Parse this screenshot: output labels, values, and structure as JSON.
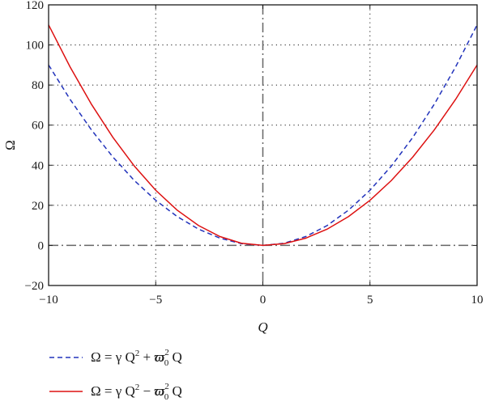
{
  "chart_data": {
    "type": "line",
    "title": "",
    "xlabel": "Q",
    "ylabel": "Ω",
    "xlim": [
      -10,
      10
    ],
    "ylim": [
      -20,
      120
    ],
    "xticks": [
      -10,
      -5,
      0,
      5,
      10
    ],
    "yticks": [
      -20,
      0,
      20,
      40,
      60,
      80,
      100,
      120
    ],
    "xtick_labels": [
      "−10",
      "−5",
      "0",
      "5",
      "10"
    ],
    "ytick_labels": [
      "−20",
      "0",
      "20",
      "40",
      "60",
      "80",
      "100",
      "120"
    ],
    "grid": "dotted",
    "reference_lines": {
      "x": 0,
      "y": 0,
      "style": "dash-dot"
    },
    "legend_position": "below",
    "series": [
      {
        "name": "Ω = γ Q² + ϖ₀² Q",
        "legend_text": "Ω = γ Q",
        "legend_exp": "2",
        "legend_op": "+",
        "legend_sym": "ϖ",
        "legend_sub": "0",
        "legend_sup": "2",
        "legend_tail": "Q",
        "color": "#2233bb",
        "style": "dashed",
        "x": [
          -10,
          -9,
          -8,
          -7,
          -6,
          -5,
          -4,
          -3,
          -2,
          -1,
          0,
          1,
          2,
          3,
          4,
          5,
          6,
          7,
          8,
          9,
          10
        ],
        "y": [
          90,
          72.9,
          57.6,
          44.1,
          32.4,
          22.5,
          14.4,
          8.1,
          3.6,
          0.9,
          0,
          1.1,
          4.4,
          9.9,
          17.6,
          27.5,
          39.6,
          53.9,
          70.4,
          89.1,
          110
        ]
      },
      {
        "name": "Ω = γ Q² − ϖ₀² Q",
        "legend_text": "Ω = γ Q",
        "legend_exp": "2",
        "legend_op": "−",
        "legend_sym": "ϖ",
        "legend_sub": "0",
        "legend_sup": "2",
        "legend_tail": "Q",
        "color": "#dd1111",
        "style": "solid",
        "x": [
          -10,
          -9,
          -8,
          -7,
          -6,
          -5,
          -4,
          -3,
          -2,
          -1,
          0,
          1,
          2,
          3,
          4,
          5,
          6,
          7,
          8,
          9,
          10
        ],
        "y": [
          110,
          89.1,
          70.4,
          53.9,
          39.6,
          27.5,
          17.6,
          9.9,
          4.4,
          1.1,
          0,
          0.9,
          3.6,
          8.1,
          14.4,
          22.5,
          32.4,
          44.1,
          57.6,
          72.9,
          90
        ]
      }
    ]
  }
}
